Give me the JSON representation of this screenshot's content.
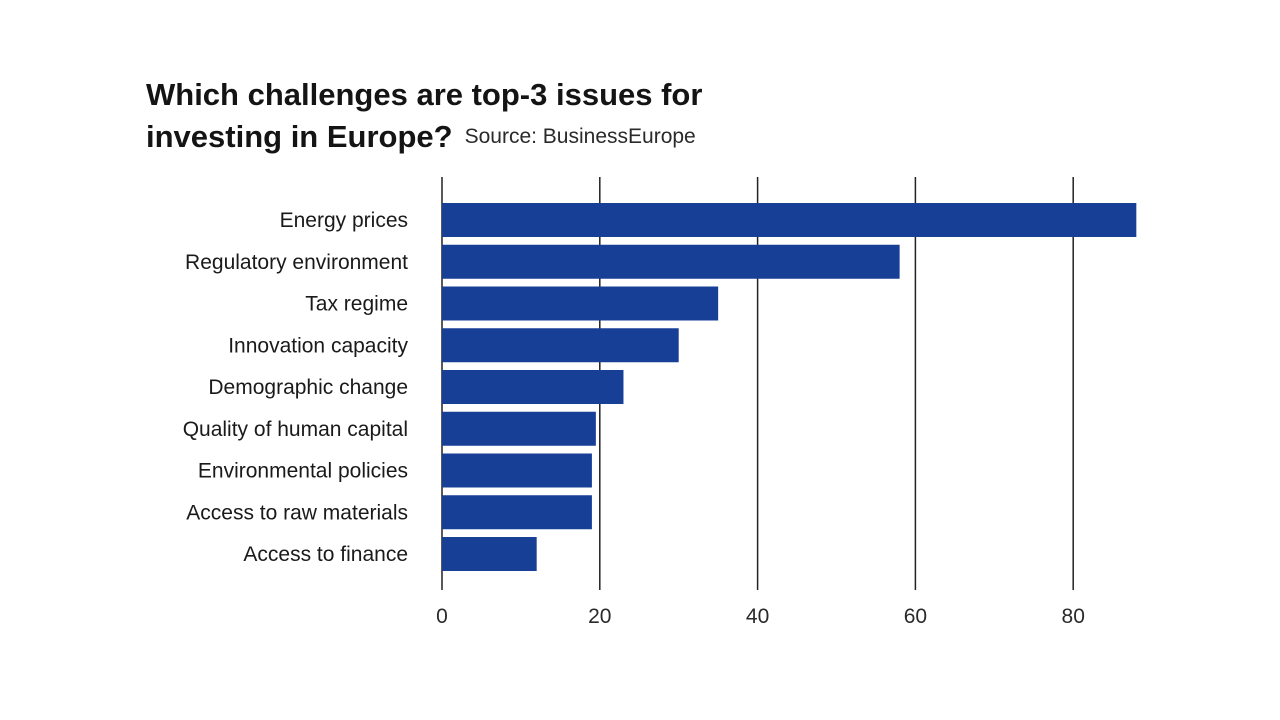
{
  "chart_data": {
    "type": "bar",
    "orientation": "horizontal",
    "title_line1": "Which challenges are top-3 issues for",
    "title_line2": "investing in Europe?",
    "source": "Source: BusinessEurope",
    "categories": [
      "Energy prices",
      "Regulatory environment",
      "Tax regime",
      "Innovation capacity",
      "Demographic change",
      "Quality of human capital",
      "Environmental policies",
      "Access to raw materials",
      "Access to finance"
    ],
    "values": [
      88,
      58,
      35,
      30,
      23,
      19.5,
      19,
      19,
      12
    ],
    "xticks": [
      0,
      20,
      40,
      60,
      80
    ],
    "xlim": [
      0,
      88
    ],
    "grid": true,
    "bar_color": "#173f95",
    "grid_color": "#222222"
  }
}
